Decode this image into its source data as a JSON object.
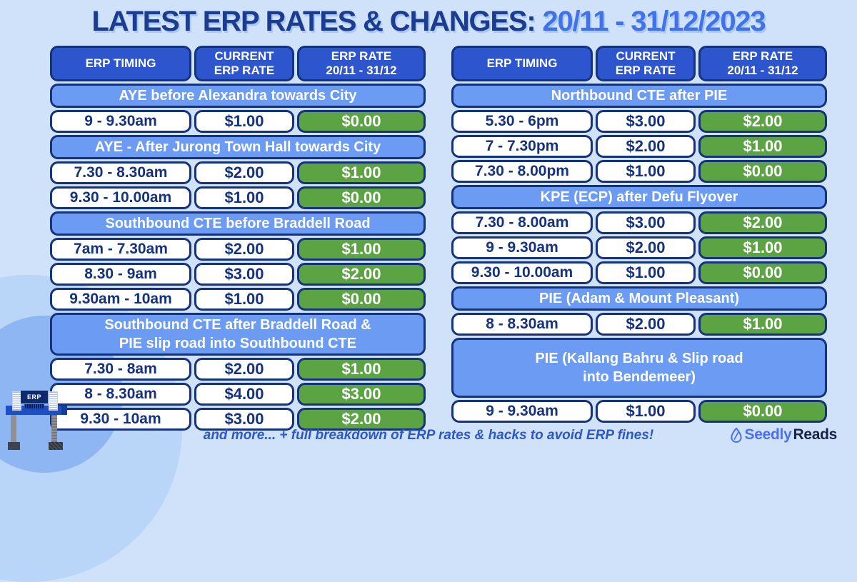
{
  "title": {
    "main": "LATEST ERP RATES & CHANGES: ",
    "date": "20/11 - 31/12/2023"
  },
  "chart_data": [
    {
      "type": "table",
      "columns": [
        "ERP TIMING",
        "CURRENT\nERP RATE",
        "ERP RATE\n20/11 - 31/12"
      ],
      "sections": [
        {
          "title": "AYE before Alexandra towards City",
          "tall": false,
          "rows": [
            {
              "timing": "9 - 9.30am",
              "current": "$1.00",
              "new_rate": "$0.00"
            }
          ]
        },
        {
          "title": "AYE - After Jurong Town Hall towards City",
          "tall": false,
          "rows": [
            {
              "timing": "7.30 - 8.30am",
              "current": "$2.00",
              "new_rate": "$1.00"
            },
            {
              "timing": "9.30 - 10.00am",
              "current": "$1.00",
              "new_rate": "$0.00"
            }
          ]
        },
        {
          "title": "Southbound CTE before Braddell Road",
          "tall": false,
          "rows": [
            {
              "timing": "7am - 7.30am",
              "current": "$2.00",
              "new_rate": "$1.00"
            },
            {
              "timing": "8.30 - 9am",
              "current": "$3.00",
              "new_rate": "$2.00"
            },
            {
              "timing": "9.30am - 10am",
              "current": "$1.00",
              "new_rate": "$0.00"
            }
          ]
        },
        {
          "title": "Southbound CTE after Braddell Road &\nPIE slip road into Southbound CTE",
          "tall": false,
          "rows": [
            {
              "timing": "7.30 - 8am",
              "current": "$2.00",
              "new_rate": "$1.00"
            },
            {
              "timing": "8 - 8.30am",
              "current": "$4.00",
              "new_rate": "$3.00"
            },
            {
              "timing": "9.30 - 10am",
              "current": "$3.00",
              "new_rate": "$2.00"
            }
          ]
        }
      ]
    },
    {
      "type": "table",
      "columns": [
        "ERP TIMING",
        "CURRENT\nERP RATE",
        "ERP RATE\n20/11 - 31/12"
      ],
      "sections": [
        {
          "title": "Northbound CTE after PIE",
          "tall": false,
          "rows": [
            {
              "timing": "5.30 - 6pm",
              "current": "$3.00",
              "new_rate": "$2.00"
            },
            {
              "timing": "7 - 7.30pm",
              "current": "$2.00",
              "new_rate": "$1.00"
            },
            {
              "timing": "7.30 - 8.00pm",
              "current": "$1.00",
              "new_rate": "$0.00"
            }
          ]
        },
        {
          "title": "KPE (ECP) after Defu Flyover",
          "tall": false,
          "rows": [
            {
              "timing": "7.30 - 8.00am",
              "current": "$3.00",
              "new_rate": "$2.00"
            },
            {
              "timing": "9 - 9.30am",
              "current": "$2.00",
              "new_rate": "$1.00"
            },
            {
              "timing": "9.30 - 10.00am",
              "current": "$1.00",
              "new_rate": "$0.00"
            }
          ]
        },
        {
          "title": "PIE (Adam & Mount Pleasant)",
          "tall": false,
          "rows": [
            {
              "timing": "8 - 8.30am",
              "current": "$2.00",
              "new_rate": "$1.00"
            }
          ]
        },
        {
          "title": "PIE (Kallang Bahru & Slip road\ninto Bendemeer)",
          "tall": true,
          "rows": [
            {
              "timing": "9 - 9.30am",
              "current": "$1.00",
              "new_rate": "$0.00"
            }
          ]
        }
      ]
    }
  ],
  "footer": {
    "note": "and more... + full breakdown of ERP rates & hacks to avoid ERP fines!"
  },
  "brand": {
    "name_primary": "Seedly",
    "name_secondary": "Reads",
    "leaf_icon": "seedly-leaf-icon"
  },
  "gantry": {
    "sign": "ERP"
  },
  "colors": {
    "background": "#cfe2fa",
    "title_navy": "#1b3c8f",
    "title_blue": "#4272e9",
    "header_blue": "#2d55cd",
    "section_blue": "#6c9bf4",
    "cell_border_navy": "#15337d",
    "cell_text_navy": "#14327f",
    "rate_green": "#5ca344",
    "footer_blue": "#2b57c9",
    "brand_blue": "#4a6ff5",
    "brand_dark": "#172448"
  }
}
